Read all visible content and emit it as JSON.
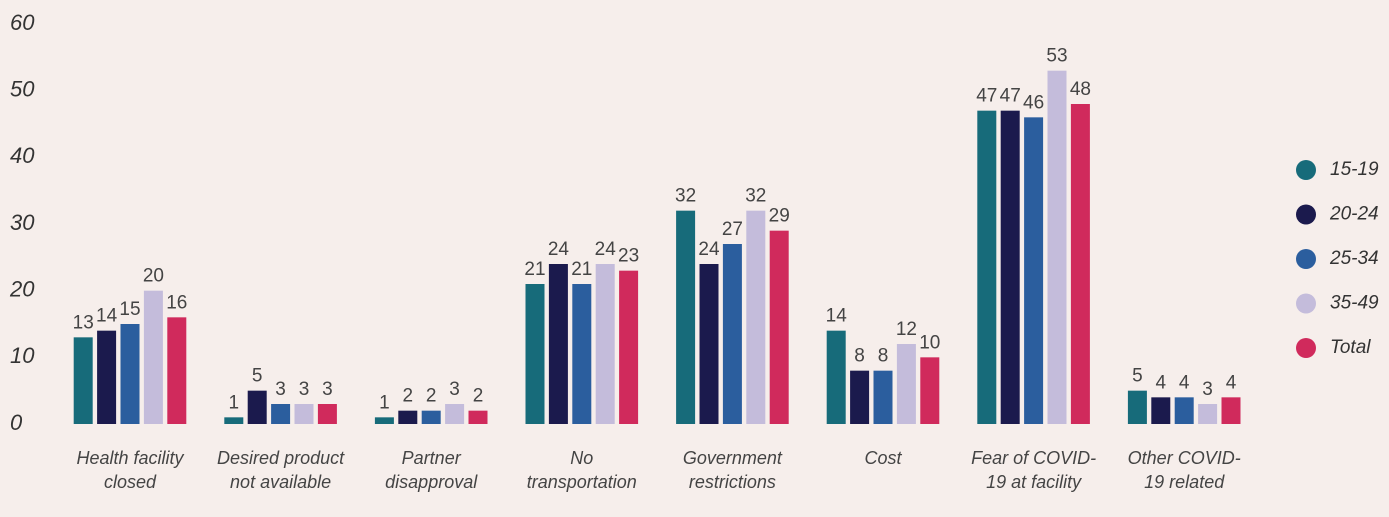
{
  "chart_data": {
    "type": "bar",
    "categories": [
      "Health facility closed",
      "Desired product not available",
      "Partner disapproval",
      "No transportation",
      "Government restrictions",
      "Cost",
      "Fear of COVID-19 at facility",
      "Other COVID-19 related"
    ],
    "series": [
      {
        "name": "15-19",
        "color": "#176b7a",
        "values": [
          13,
          1,
          1,
          21,
          32,
          14,
          47,
          5
        ]
      },
      {
        "name": "20-24",
        "color": "#1b1a4d",
        "values": [
          14,
          5,
          2,
          24,
          24,
          8,
          47,
          4
        ]
      },
      {
        "name": "25-34",
        "color": "#2b5e9e",
        "values": [
          15,
          3,
          2,
          21,
          27,
          8,
          46,
          4
        ]
      },
      {
        "name": "35-49",
        "color": "#c4bcdb",
        "values": [
          20,
          3,
          3,
          24,
          32,
          12,
          53,
          3
        ]
      },
      {
        "name": "Total",
        "color": "#d02a5c",
        "values": [
          16,
          3,
          2,
          23,
          29,
          10,
          48,
          4
        ]
      }
    ],
    "ylim": [
      0,
      60
    ],
    "yticks": [
      0,
      10,
      20,
      30,
      40,
      50,
      60
    ],
    "grid": false,
    "legend": "right"
  }
}
